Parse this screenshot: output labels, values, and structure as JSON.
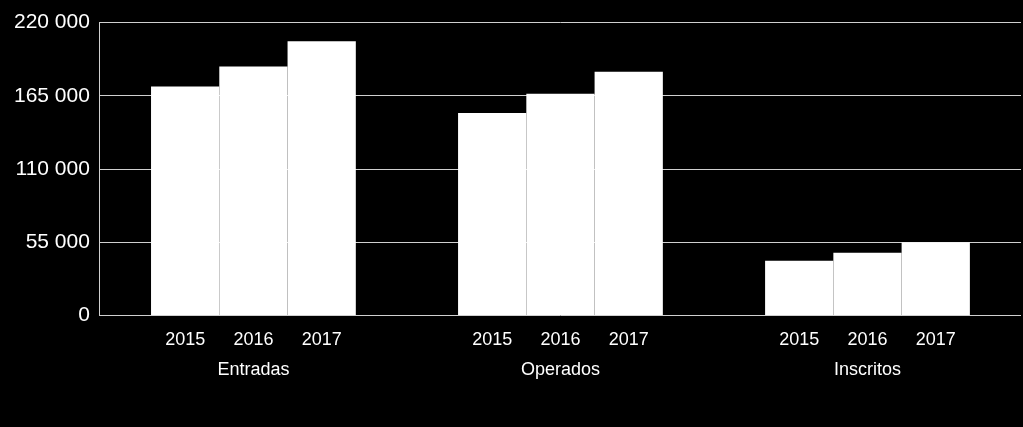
{
  "chart_data": {
    "type": "bar",
    "categories": [
      "Entradas",
      "Operados",
      "Inscritos"
    ],
    "series": [
      {
        "name": "2015",
        "color": "#ffffff",
        "values": [
          172000,
          152000,
          41000
        ]
      },
      {
        "name": "2016",
        "color": "#ffffff",
        "values": [
          187000,
          166500,
          47000
        ]
      },
      {
        "name": "2017",
        "color": "#ffffff",
        "values": [
          206000,
          183000,
          55000
        ]
      }
    ],
    "ylim": [
      0,
      220000
    ],
    "yticks": [
      0,
      {
        "value": 55000,
        "label": "55 000"
      },
      {
        "value": 110000,
        "label": "110 000"
      },
      {
        "value": 165000,
        "label": "165 000"
      },
      {
        "value": 220000,
        "label": "220 000"
      }
    ],
    "grid": true
  }
}
